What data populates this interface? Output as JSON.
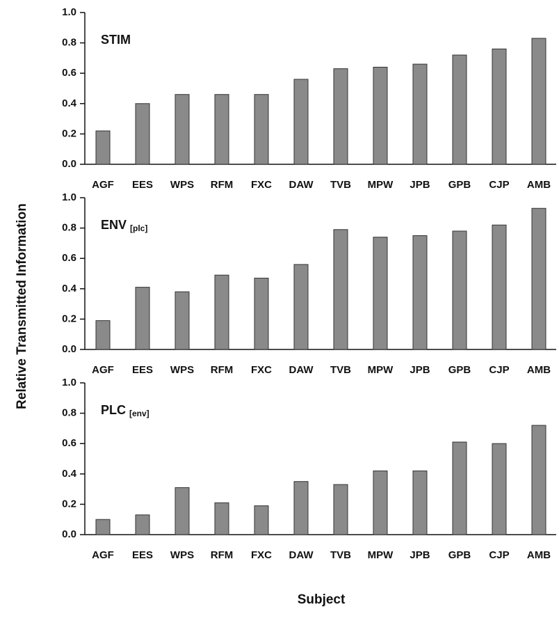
{
  "y_label": "Relative Transmitted Information",
  "x_label": "Subject",
  "chart_data": [
    {
      "type": "bar",
      "title": "STIM",
      "color": "#8a8a8a",
      "categories": [
        "AGF",
        "EES",
        "WPS",
        "RFM",
        "FXC",
        "DAW",
        "TVB",
        "MPW",
        "JPB",
        "GPB",
        "CJP",
        "AMB"
      ],
      "values": [
        0.22,
        0.4,
        0.46,
        0.46,
        0.46,
        0.56,
        0.63,
        0.64,
        0.66,
        0.72,
        0.76,
        0.83
      ],
      "ylim": [
        0,
        1
      ],
      "yticks": [
        {
          "value": 0,
          "label": "0.0"
        },
        0.2,
        0.4,
        0.6,
        0.8,
        {
          "value": 1,
          "label": "1.0"
        }
      ]
    },
    {
      "type": "bar",
      "title": "ENV",
      "title_sub": "[plc]",
      "color": "#8a8a8a",
      "categories": [
        "AGF",
        "EES",
        "WPS",
        "RFM",
        "FXC",
        "DAW",
        "TVB",
        "MPW",
        "JPB",
        "GPB",
        "CJP",
        "AMB"
      ],
      "values": [
        0.19,
        0.41,
        0.38,
        0.49,
        0.47,
        0.56,
        0.79,
        0.74,
        0.75,
        0.78,
        0.82,
        0.93
      ],
      "ylim": [
        0,
        1
      ],
      "yticks": [
        {
          "value": 0,
          "label": "0.0"
        },
        0.2,
        0.4,
        0.6,
        0.8,
        {
          "value": 1,
          "label": "1.0"
        }
      ]
    },
    {
      "type": "bar",
      "title": "PLC",
      "title_sub": "[env]",
      "color": "#8a8a8a",
      "categories": [
        "AGF",
        "EES",
        "WPS",
        "RFM",
        "FXC",
        "DAW",
        "TVB",
        "MPW",
        "JPB",
        "GPB",
        "CJP",
        "AMB"
      ],
      "values": [
        0.1,
        0.13,
        0.31,
        0.21,
        0.19,
        0.35,
        0.33,
        0.42,
        0.42,
        0.61,
        0.6,
        0.72
      ],
      "ylim": [
        0,
        1
      ],
      "yticks": [
        {
          "value": 0,
          "label": "0.0"
        },
        0.2,
        0.4,
        0.6,
        0.8,
        {
          "value": 1,
          "label": "1.0"
        }
      ]
    }
  ]
}
